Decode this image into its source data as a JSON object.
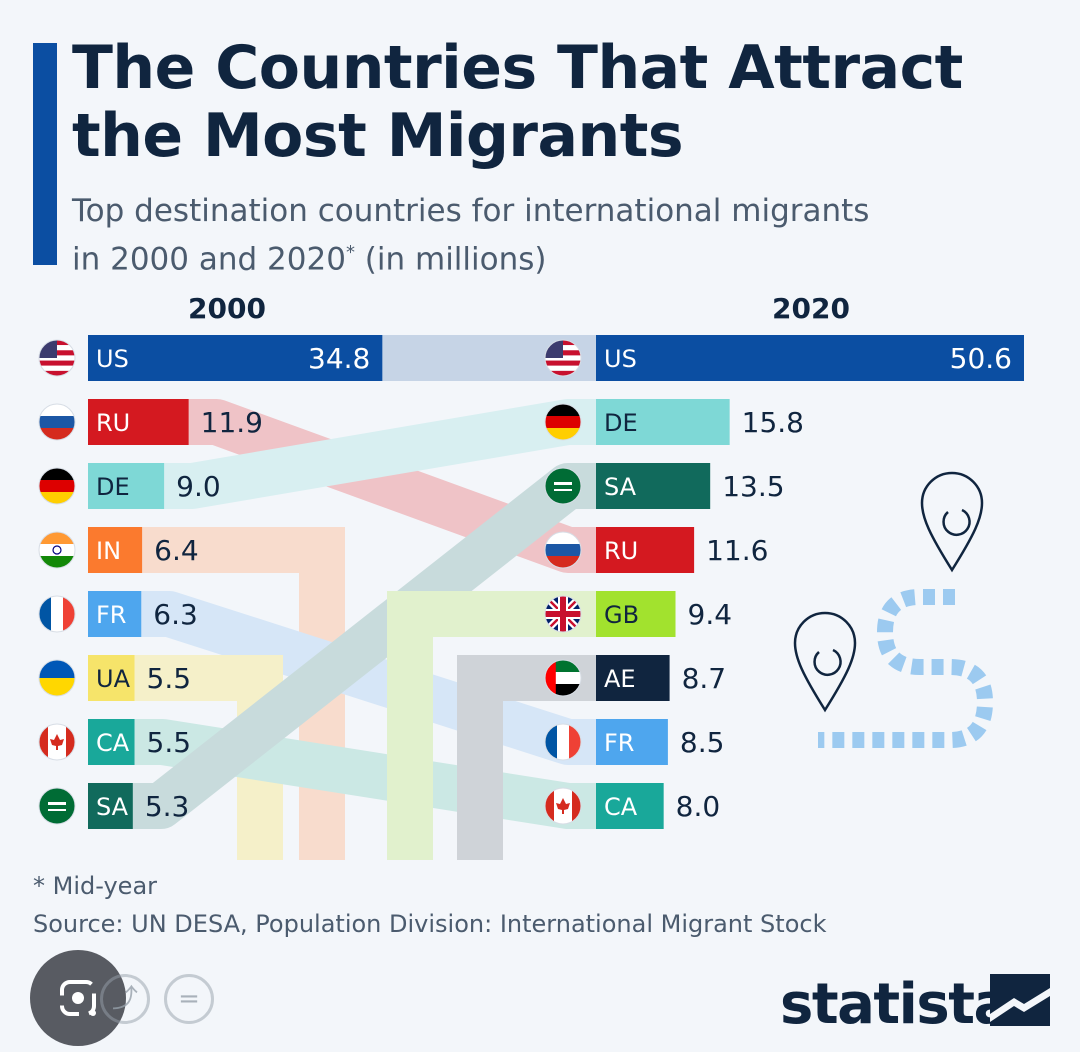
{
  "header": {
    "title_line1": "The Countries That Attract",
    "title_line2": "the Most Migrants",
    "subtitle_line1": "Top destination countries for international migrants",
    "subtitle_line2_a": "in 2000 and 2020",
    "subtitle_star": "*",
    "subtitle_line2_b": " (in millions)"
  },
  "footer": {
    "footnote": "* Mid-year",
    "source": "Source: UN DESA, Population Division: International Migrant Stock",
    "logo": "statista"
  },
  "lens_controls": {
    "equals_glyph": "="
  },
  "chart_data": {
    "type": "bar",
    "year_labels": [
      "2000",
      "2020"
    ],
    "left": [
      {
        "code": "US",
        "value": 34.8,
        "label": "34.8",
        "color": "#0b4ea2",
        "link": "#c6d4e6"
      },
      {
        "code": "RU",
        "value": 11.9,
        "label": "11.9",
        "color": "#d41920",
        "link": "#efc3c7"
      },
      {
        "code": "DE",
        "value": 9.0,
        "label": "9.0",
        "color": "#7ed8d6",
        "link": "#d8eff1"
      },
      {
        "code": "IN",
        "value": 6.4,
        "label": "6.4",
        "color": "#fb7a2e",
        "link": "#f8dccd"
      },
      {
        "code": "FR",
        "value": 6.3,
        "label": "6.3",
        "color": "#4ea6ee",
        "link": "#d6e6f7"
      },
      {
        "code": "UA",
        "value": 5.5,
        "label": "5.5",
        "color": "#f6e46a",
        "link": "#f5f0c9"
      },
      {
        "code": "CA",
        "value": 5.5,
        "label": "5.5",
        "color": "#19a89a",
        "link": "#cbe8e4"
      },
      {
        "code": "SA",
        "value": 5.3,
        "label": "5.3",
        "color": "#116a5c",
        "link": "#c8dbdc"
      }
    ],
    "right": [
      {
        "code": "US",
        "value": 50.6,
        "label": "50.6",
        "color": "#0b4ea2"
      },
      {
        "code": "DE",
        "value": 15.8,
        "label": "15.8",
        "color": "#7ed8d6"
      },
      {
        "code": "SA",
        "value": 13.5,
        "label": "13.5",
        "color": "#116a5c"
      },
      {
        "code": "RU",
        "value": 11.6,
        "label": "11.6",
        "color": "#d41920"
      },
      {
        "code": "GB",
        "value": 9.4,
        "label": "9.4",
        "color": "#a2e22e",
        "link": "#e1f1cd"
      },
      {
        "code": "AE",
        "value": 8.7,
        "label": "8.7",
        "color": "#10253f",
        "link": "#cfd3d8"
      },
      {
        "code": "FR",
        "value": 8.5,
        "label": "8.5",
        "color": "#4ea6ee"
      },
      {
        "code": "CA",
        "value": 8.0,
        "label": "8.0",
        "color": "#19a89a"
      }
    ]
  }
}
